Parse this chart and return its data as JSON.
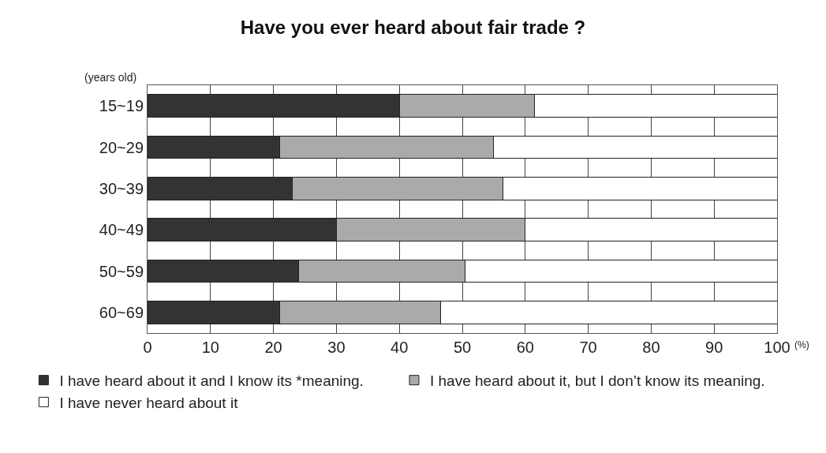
{
  "chart_data": {
    "type": "bar",
    "orientation": "horizontal",
    "stacked": true,
    "title": "Have you ever heard about fair trade ?",
    "ylabel": "(years old)",
    "xlabel": "(%)",
    "categories": [
      "15~19",
      "20~29",
      "30~39",
      "40~49",
      "50~59",
      "60~69"
    ],
    "series": [
      {
        "name": "I have heard about it and I know its *meaning.",
        "color": "#333333",
        "values": [
          40,
          21,
          23,
          30,
          24,
          21
        ]
      },
      {
        "name": "I have heard about it, but I don’t know its meaning.",
        "color": "#aaaaaa",
        "values": [
          21.5,
          34,
          33.5,
          30,
          26.5,
          25.5
        ]
      },
      {
        "name": "I have never heard about it",
        "color": "#ffffff",
        "values": [
          38.5,
          45,
          43.5,
          40,
          49.5,
          53.5
        ]
      }
    ],
    "xlim": [
      0,
      100
    ],
    "xticks": [
      0,
      10,
      20,
      30,
      40,
      50,
      60,
      70,
      80,
      90,
      100
    ],
    "grid": "x",
    "legend": "bottom left"
  }
}
